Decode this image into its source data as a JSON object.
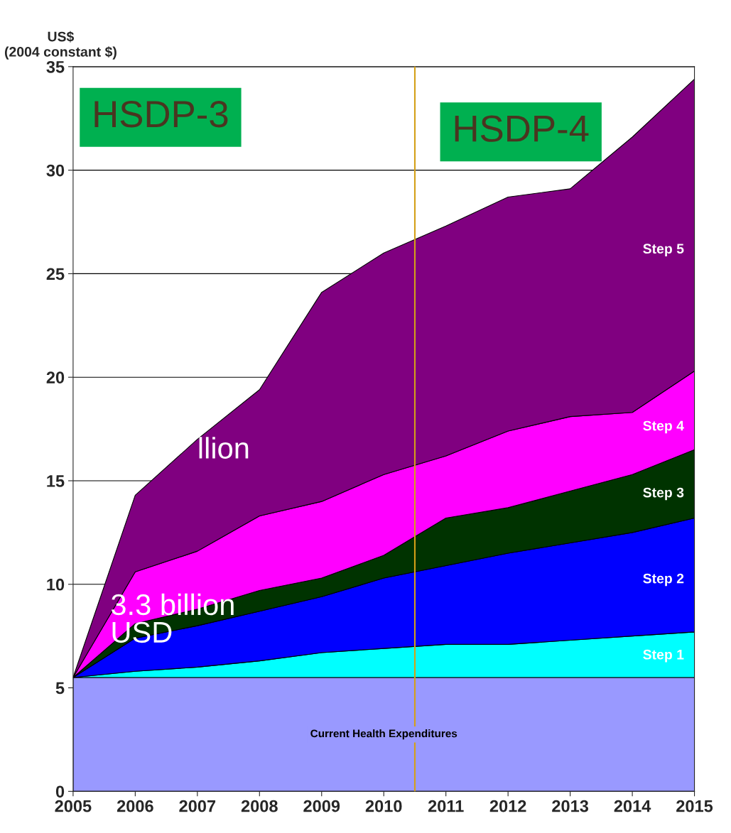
{
  "chart_data": {
    "type": "area",
    "stacked": true,
    "ylabel": "US$\n(2004 constant $)",
    "x": [
      2005,
      2006,
      2007,
      2008,
      2009,
      2010,
      2011,
      2012,
      2013,
      2014,
      2015
    ],
    "xlim": [
      2005,
      2015
    ],
    "xticks": [
      2005,
      2006,
      2007,
      2008,
      2009,
      2010,
      2011,
      2012,
      2013,
      2014,
      2015
    ],
    "ylim": [
      0,
      35
    ],
    "yticks": [
      0,
      5,
      10,
      15,
      20,
      25,
      30,
      35
    ],
    "grid": "y",
    "legend": false,
    "series": [
      {
        "name": "Current Health Expenditures",
        "color": "#9999ff",
        "values": [
          5.5,
          5.5,
          5.5,
          5.5,
          5.5,
          5.5,
          5.5,
          5.5,
          5.5,
          5.5,
          5.5
        ]
      },
      {
        "name": "Step 1",
        "color": "#00ffff",
        "values": [
          0,
          0.3,
          0.5,
          0.8,
          1.2,
          1.4,
          1.6,
          1.6,
          1.8,
          2.0,
          2.2
        ]
      },
      {
        "name": "Step 2",
        "color": "#0000ff",
        "values": [
          0,
          1.6,
          2.0,
          2.4,
          2.7,
          3.4,
          3.8,
          4.4,
          4.7,
          5.0,
          5.5
        ]
      },
      {
        "name": "Step 3",
        "color": "#003300",
        "values": [
          0,
          0.7,
          0.8,
          1.0,
          0.9,
          1.1,
          2.3,
          2.2,
          2.5,
          2.8,
          3.3
        ]
      },
      {
        "name": "Step 4",
        "color": "#ff00ff",
        "values": [
          0,
          2.5,
          2.8,
          3.6,
          3.7,
          3.9,
          3.0,
          3.7,
          3.6,
          3.0,
          3.8
        ]
      },
      {
        "name": "Step 5",
        "color": "#800080",
        "values": [
          0,
          3.7,
          5.4,
          6.1,
          10.1,
          10.7,
          11.1,
          11.3,
          11.0,
          13.3,
          14.1
        ]
      }
    ],
    "ref_lines": [
      {
        "axis": "x",
        "value": 2010.5,
        "color": "#d4a017"
      }
    ],
    "annotations": [
      "HSDP-3",
      "HSDP-4",
      "3.3 billion\nUSD",
      "llion"
    ]
  }
}
